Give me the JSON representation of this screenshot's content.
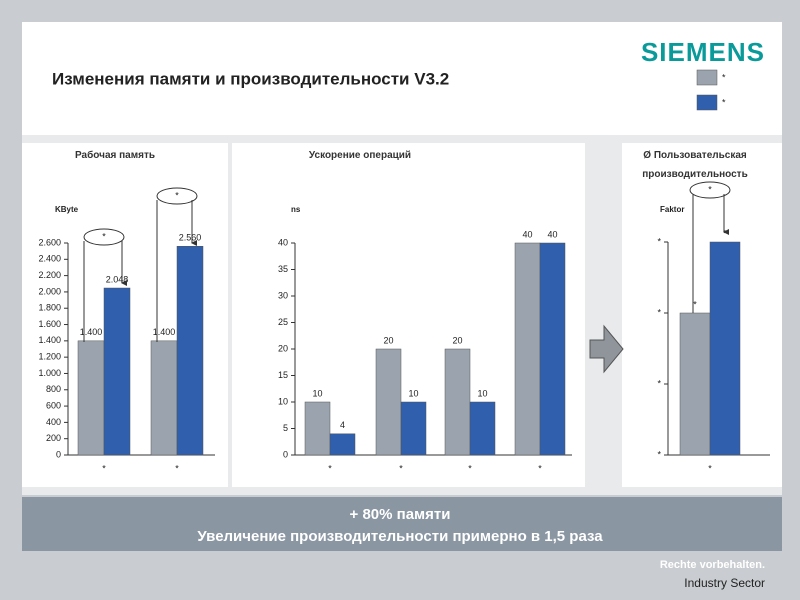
{
  "header": {
    "title": "Изменения памяти и производительности V3.2",
    "logo": "SIEMENS"
  },
  "chart_data": [
    {
      "type": "bar",
      "title": "Рабочая память",
      "y_label": "KByte",
      "categories": [
        "*",
        "*"
      ],
      "series": [
        {
          "name": "*",
          "color": "#9ba4ae",
          "values": [
            1400,
            1400
          ],
          "value_labels": [
            "1.400",
            "1.400"
          ]
        },
        {
          "name": "*",
          "color": "#2f5fad",
          "values": [
            2048,
            2560
          ],
          "value_labels": [
            "2.048",
            "2.560"
          ]
        }
      ],
      "ylim": [
        0,
        2600
      ],
      "yticks": [
        0,
        200,
        400,
        600,
        800,
        {
          "value": 1000,
          "label": "1.000"
        },
        {
          "value": 1200,
          "label": "1.200"
        },
        {
          "value": 1400,
          "label": "1.400"
        },
        {
          "value": 1600,
          "label": "1.600"
        },
        {
          "value": 1800,
          "label": "1.800"
        },
        {
          "value": 2000,
          "label": "2.000"
        },
        {
          "value": 2200,
          "label": "2.200"
        },
        {
          "value": 2400,
          "label": "2.400"
        },
        {
          "value": 2600,
          "label": "2.600"
        }
      ],
      "annotations": [
        "*",
        "*"
      ]
    },
    {
      "type": "bar",
      "title": "Ускорение операций",
      "y_label": "ns",
      "categories": [
        "*",
        "*",
        "*",
        "*"
      ],
      "series": [
        {
          "name": "*",
          "color": "#9ba4ae",
          "values": [
            10,
            20,
            20,
            40
          ]
        },
        {
          "name": "*",
          "color": "#2f5fad",
          "values": [
            4,
            10,
            10,
            40
          ]
        }
      ],
      "ylim": [
        0,
        40
      ],
      "yticks": [
        0,
        5,
        10,
        15,
        20,
        25,
        30,
        35,
        40
      ]
    },
    {
      "type": "bar",
      "title": "Ø Пользовательская производительность",
      "y_label": "Faktor",
      "categories": [
        "*"
      ],
      "series": [
        {
          "name": "*",
          "color": "#9ba4ae",
          "values": [
            1
          ],
          "bar_labels": [
            "*"
          ]
        },
        {
          "name": "*",
          "color": "#2f5fad",
          "values": [
            1.5
          ],
          "bar_labels": [
            "*"
          ]
        }
      ],
      "ylim": [
        0,
        1.5
      ],
      "yticks": [
        {
          "value": 0,
          "label": "*"
        },
        {
          "value": 0.5,
          "label": "*"
        },
        {
          "value": 1,
          "label": "*"
        },
        {
          "value": 1.5,
          "label": "*"
        }
      ],
      "annotations": [
        "*"
      ]
    }
  ],
  "banner": [
    "+ 80% памяти",
    "Увеличение производительности примерно в 1,5 раза"
  ],
  "footer": [
    "Rechte vorbehalten.",
    "Industry Sector"
  ]
}
